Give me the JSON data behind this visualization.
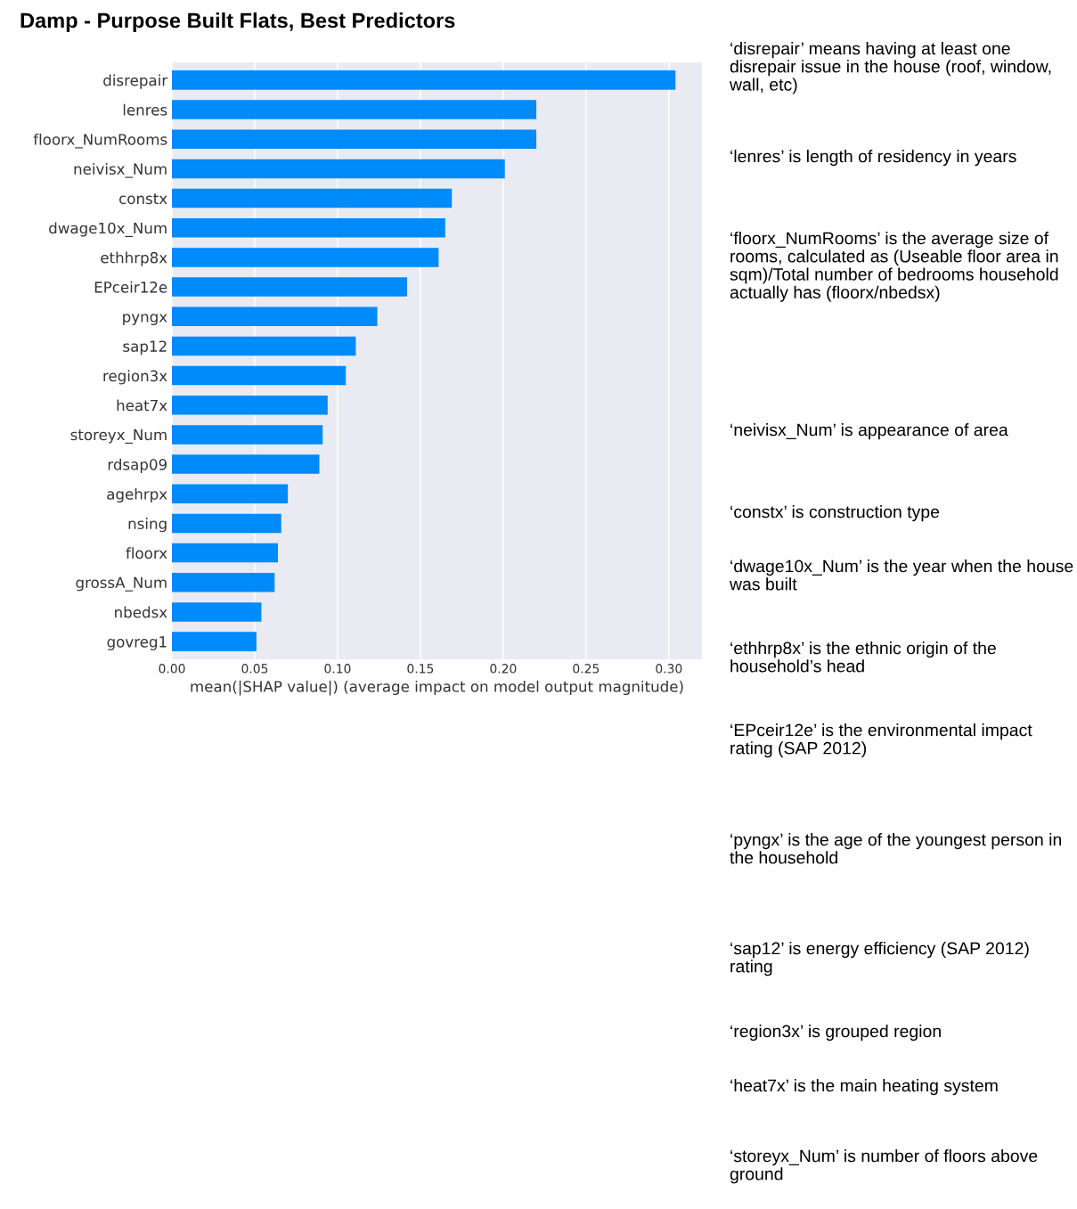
{
  "chart_data": {
    "type": "bar",
    "orientation": "horizontal",
    "title": "Damp - Purpose Built Flats, Best Predictors",
    "xlabel": "mean(|SHAP value|) (average impact on model output magnitude)",
    "categories": [
      "disrepair",
      "lenres",
      "floorx_NumRooms",
      "neivisx_Num",
      "constx",
      "dwage10x_Num",
      "ethhrp8x",
      "EPceir12e",
      "pyngx",
      "sap12",
      "region3x",
      "heat7x",
      "storeyx_Num",
      "rdsap09",
      "agehrpx",
      "nsing",
      "floorx",
      "grossA_Num",
      "nbedsx",
      "govreg1"
    ],
    "values": [
      0.304,
      0.22,
      0.22,
      0.201,
      0.169,
      0.165,
      0.161,
      0.142,
      0.124,
      0.111,
      0.105,
      0.094,
      0.091,
      0.089,
      0.07,
      0.066,
      0.064,
      0.062,
      0.054,
      0.051
    ],
    "color": "#008bfb",
    "xlim": [
      0.0,
      0.32
    ],
    "xticks": [
      {
        "value": 0.0,
        "label": "0.00"
      },
      {
        "value": 0.05,
        "label": "0.05"
      },
      {
        "value": 0.1,
        "label": "0.10"
      },
      {
        "value": 0.15,
        "label": "0.15"
      },
      {
        "value": 0.2,
        "label": "0.20"
      },
      {
        "value": 0.25,
        "label": "0.25"
      },
      {
        "value": 0.3,
        "label": "0.30"
      }
    ],
    "grid": "x",
    "annotations": [
      "‘disrepair’ means having at least one disrepair issue in the house (roof, window, wall, etc)",
      "‘lenres’ is length of residency in years",
      "‘floorx_NumRooms’ is the average size of rooms, calculated as (Useable floor area in sqm)/Total number of bedrooms household actually has (floorx/nbedsx)",
      "‘neivisx_Num’ is appearance of area",
      "‘constx’ is construction type",
      "‘dwage10x_Num’ is the year when the house was built",
      "‘ethhrp8x’ is the ethnic origin of the household’s head",
      "‘EPceir12e’ is the environmental impact rating (SAP 2012)",
      "‘pyngx’ is the age of the youngest person in the household",
      "‘sap12’ is energy efficiency (SAP 2012) rating",
      "‘region3x’ is grouped region",
      "‘heat7x’ is the main heating system",
      "‘storeyx_Num’ is number of floors above ground"
    ]
  }
}
